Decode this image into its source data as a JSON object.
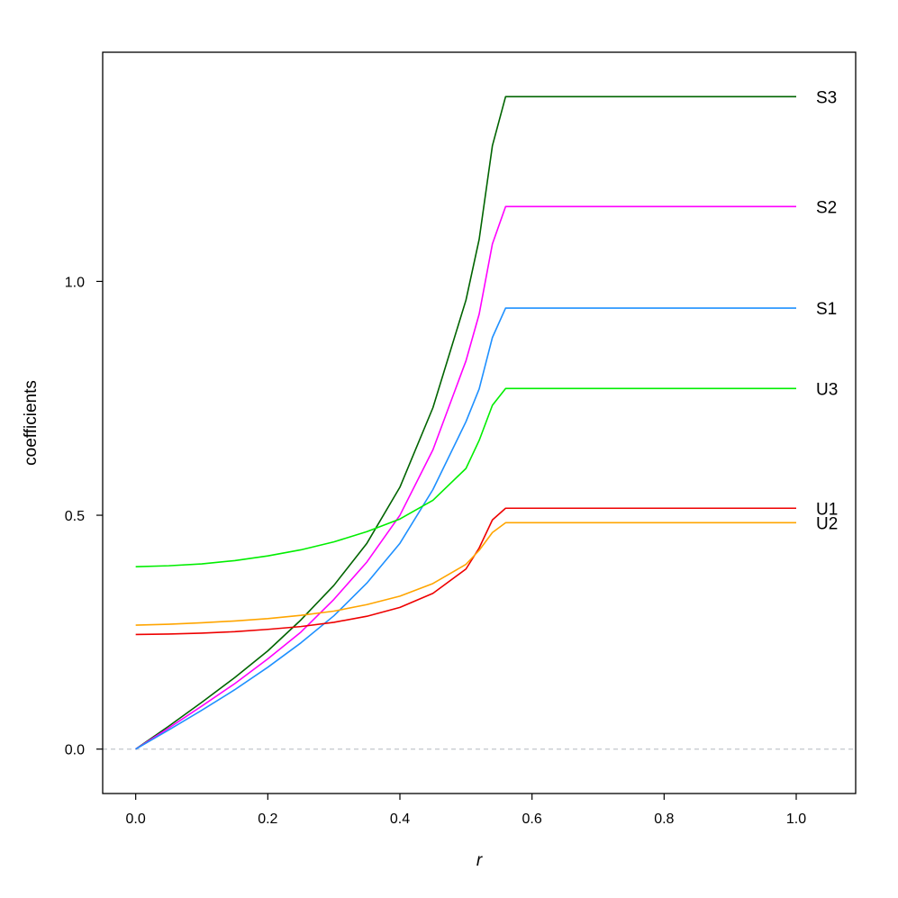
{
  "chart_data": {
    "type": "line",
    "xlabel": "r",
    "ylabel": "coefficients",
    "xlim": [
      -0.05,
      1.09
    ],
    "ylim": [
      -0.095,
      1.49
    ],
    "xticks": [
      0.0,
      0.2,
      0.4,
      0.6,
      0.8,
      1.0
    ],
    "xtick_labels": [
      "0.0",
      "0.2",
      "0.4",
      "0.6",
      "0.8",
      "1.0"
    ],
    "yticks": [
      0.0,
      0.5,
      1.0
    ],
    "ytick_labels": [
      "0.0",
      "0.5",
      "1.0"
    ],
    "reference_line": {
      "y": 0,
      "style": "dashed",
      "color": "#c8ccd0"
    },
    "grid": false,
    "legend": "direct labels at right end of each line",
    "series": [
      {
        "name": "S3",
        "color": "#006400",
        "x": [
          0,
          0.05,
          0.1,
          0.15,
          0.2,
          0.25,
          0.3,
          0.35,
          0.4,
          0.45,
          0.5,
          0.52,
          0.54,
          0.56,
          1.0
        ],
        "y": [
          0,
          0.049,
          0.1,
          0.153,
          0.21,
          0.276,
          0.35,
          0.44,
          0.56,
          0.73,
          0.96,
          1.09,
          1.29,
          1.395,
          1.395
        ]
      },
      {
        "name": "S2",
        "color": "#ff00ff",
        "x": [
          0,
          0.05,
          0.1,
          0.15,
          0.2,
          0.25,
          0.3,
          0.35,
          0.4,
          0.45,
          0.5,
          0.52,
          0.54,
          0.56,
          1.0
        ],
        "y": [
          0,
          0.045,
          0.092,
          0.14,
          0.193,
          0.25,
          0.32,
          0.4,
          0.5,
          0.64,
          0.83,
          0.93,
          1.08,
          1.16,
          1.16
        ]
      },
      {
        "name": "S1",
        "color": "#1e90ff",
        "x": [
          0,
          0.05,
          0.1,
          0.15,
          0.2,
          0.25,
          0.3,
          0.35,
          0.4,
          0.45,
          0.5,
          0.52,
          0.54,
          0.56,
          1.0
        ],
        "y": [
          0,
          0.041,
          0.083,
          0.127,
          0.175,
          0.227,
          0.285,
          0.355,
          0.44,
          0.555,
          0.7,
          0.77,
          0.88,
          0.943,
          0.943
        ]
      },
      {
        "name": "U3",
        "color": "#00ee00",
        "x": [
          0,
          0.05,
          0.1,
          0.15,
          0.2,
          0.25,
          0.3,
          0.35,
          0.4,
          0.45,
          0.5,
          0.52,
          0.54,
          0.56,
          1.0
        ],
        "y": [
          0.39,
          0.392,
          0.396,
          0.403,
          0.413,
          0.426,
          0.443,
          0.465,
          0.492,
          0.532,
          0.6,
          0.66,
          0.735,
          0.771,
          0.771
        ]
      },
      {
        "name": "U1",
        "color": "#ee0000",
        "x": [
          0,
          0.05,
          0.1,
          0.15,
          0.2,
          0.25,
          0.3,
          0.35,
          0.4,
          0.45,
          0.5,
          0.52,
          0.54,
          0.56,
          1.0
        ],
        "y": [
          0.245,
          0.246,
          0.248,
          0.251,
          0.256,
          0.262,
          0.271,
          0.284,
          0.303,
          0.333,
          0.385,
          0.43,
          0.49,
          0.515,
          0.515
        ]
      },
      {
        "name": "U2",
        "color": "#ffa500",
        "x": [
          0,
          0.05,
          0.1,
          0.15,
          0.2,
          0.25,
          0.3,
          0.35,
          0.4,
          0.45,
          0.5,
          0.52,
          0.54,
          0.56,
          1.0
        ],
        "y": [
          0.265,
          0.267,
          0.27,
          0.274,
          0.279,
          0.286,
          0.295,
          0.309,
          0.327,
          0.354,
          0.395,
          0.425,
          0.463,
          0.484,
          0.484
        ]
      }
    ]
  }
}
